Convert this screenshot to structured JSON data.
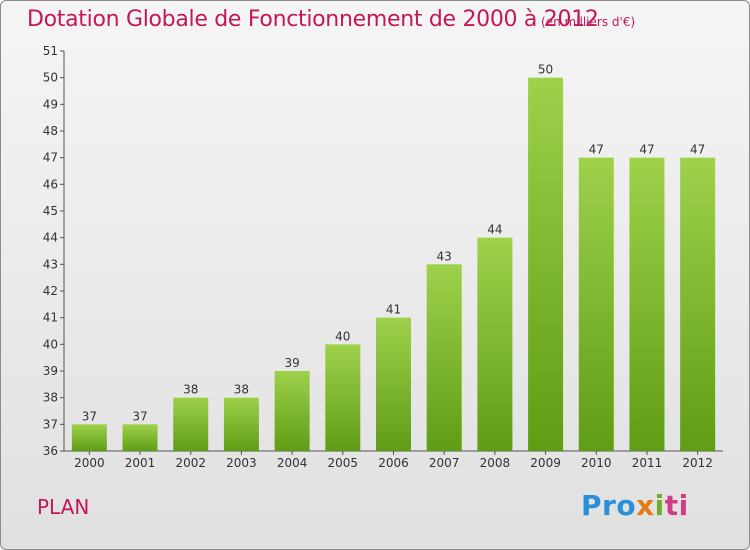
{
  "header": {
    "title": "Dotation Globale de Fonctionnement de 2000 à 2012",
    "subtitle": "(en milliers d'€)"
  },
  "footer": {
    "commune": "PLAN",
    "logo": {
      "p1": "Pro",
      "p2": "x",
      "p3": "i",
      "p4": "ti"
    }
  },
  "colors": {
    "bar_top": "#9fd14b",
    "bar_bottom": "#5e9d14",
    "accent": "#c2185b"
  },
  "chart_data": {
    "type": "bar",
    "title": "Dotation Globale de Fonctionnement de 2000 à 2012",
    "subtitle": "(en milliers d'€)",
    "xlabel": "",
    "ylabel": "",
    "categories": [
      "2000",
      "2001",
      "2002",
      "2003",
      "2004",
      "2005",
      "2006",
      "2007",
      "2008",
      "2009",
      "2010",
      "2011",
      "2012"
    ],
    "values": [
      37,
      37,
      38,
      38,
      39,
      40,
      41,
      43,
      44,
      50,
      47,
      47,
      47
    ],
    "ylim": [
      36,
      51
    ],
    "yticks": [
      36,
      37,
      38,
      39,
      40,
      41,
      42,
      43,
      44,
      45,
      46,
      47,
      48,
      49,
      50,
      51
    ],
    "grid": false,
    "legend": "none"
  }
}
